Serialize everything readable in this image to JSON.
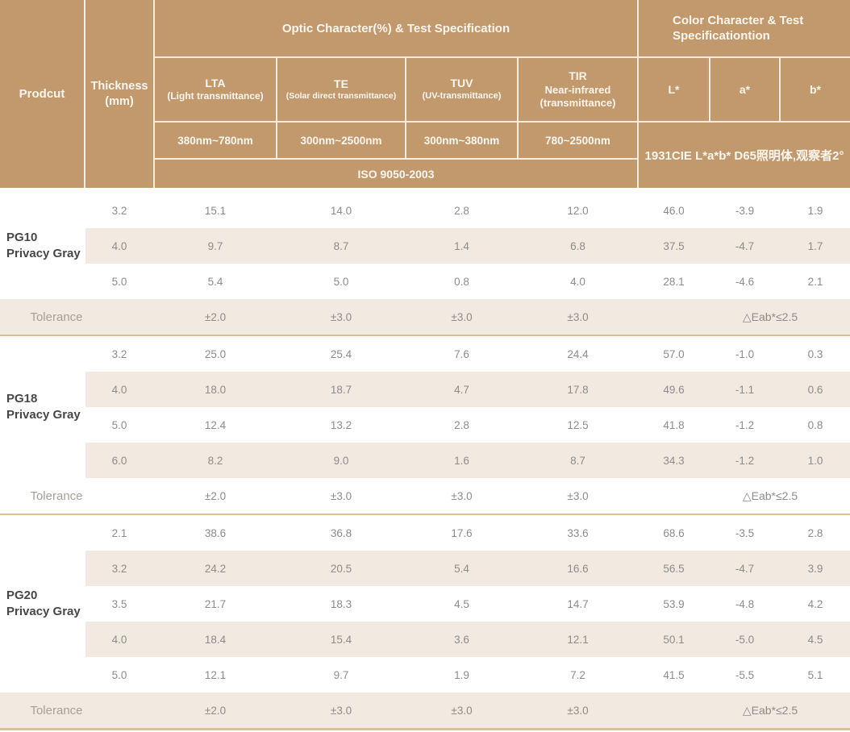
{
  "colors": {
    "header_bg": "#C2996C",
    "header_text": "#FBF6EF",
    "stripe_bg": "#F2E9E1",
    "separator": "#D9BF9D",
    "value_text": "#8C8C8C",
    "product_text": "#474747"
  },
  "header": {
    "product_col": "Prodcut",
    "thickness_col": "Thickness\n(mm)",
    "optic_group": "Optic Character(%) & Test Specification",
    "color_group": "Color Character & Test Specificationtion",
    "optic_columns": [
      {
        "title": "LTA",
        "subtitle": "(Light transmittance)",
        "range": "380nm~780nm"
      },
      {
        "title": "TE",
        "subtitle": "(Solar direct transmittance)",
        "range": "300nm~2500nm"
      },
      {
        "title": "TUV",
        "subtitle": "(UV-transmittance)",
        "range": "300nm~380nm"
      },
      {
        "title": "TIR",
        "subtitle": "Near-infrared\n(transmittance)",
        "range": "780~2500nm"
      }
    ],
    "iso_standard": "ISO 9050-2003",
    "color_columns": [
      "L*",
      "a*",
      "b*"
    ],
    "cie_standard": "1931CIE L*a*b*  D65照明体,观察者2°"
  },
  "groups": [
    {
      "product": "PG10\nPrivacy Gray",
      "rows": [
        {
          "thickness": "3.2",
          "values": [
            "15.1",
            "14.0",
            "2.8",
            "12.0",
            "46.0",
            "-3.9",
            "1.9"
          ]
        },
        {
          "thickness": "4.0",
          "values": [
            "9.7",
            "8.7",
            "1.4",
            "6.8",
            "37.5",
            "-4.7",
            "1.7"
          ]
        },
        {
          "thickness": "5.0",
          "values": [
            "5.4",
            "5.0",
            "0.8",
            "4.0",
            "28.1",
            "-4.6",
            "2.1"
          ]
        }
      ],
      "tolerance": {
        "label": "Tolerance",
        "values": [
          "±2.0",
          "±3.0",
          "±3.0",
          "±3.0"
        ],
        "color_tolerance": "△Eab*≤2.5"
      }
    },
    {
      "product": "PG18\nPrivacy Gray",
      "rows": [
        {
          "thickness": "3.2",
          "values": [
            "25.0",
            "25.4",
            "7.6",
            "24.4",
            "57.0",
            "-1.0",
            "0.3"
          ]
        },
        {
          "thickness": "4.0",
          "values": [
            "18.0",
            "18.7",
            "4.7",
            "17.8",
            "49.6",
            "-1.1",
            "0.6"
          ]
        },
        {
          "thickness": "5.0",
          "values": [
            "12.4",
            "13.2",
            "2.8",
            "12.5",
            "41.8",
            "-1.2",
            "0.8"
          ]
        },
        {
          "thickness": "6.0",
          "values": [
            "8.2",
            "9.0",
            "1.6",
            "8.7",
            "34.3",
            "-1.2",
            "1.0"
          ]
        }
      ],
      "tolerance": {
        "label": "Tolerance",
        "values": [
          "±2.0",
          "±3.0",
          "±3.0",
          "±3.0"
        ],
        "color_tolerance": "△Eab*≤2.5"
      }
    },
    {
      "product": "PG20\nPrivacy Gray",
      "rows": [
        {
          "thickness": "2.1",
          "values": [
            "38.6",
            "36.8",
            "17.6",
            "33.6",
            "68.6",
            "-3.5",
            "2.8"
          ]
        },
        {
          "thickness": "3.2",
          "values": [
            "24.2",
            "20.5",
            "5.4",
            "16.6",
            "56.5",
            "-4.7",
            "3.9"
          ]
        },
        {
          "thickness": "3.5",
          "values": [
            "21.7",
            "18.3",
            "4.5",
            "14.7",
            "53.9",
            "-4.8",
            "4.2"
          ]
        },
        {
          "thickness": "4.0",
          "values": [
            "18.4",
            "15.4",
            "3.6",
            "12.1",
            "50.1",
            "-5.0",
            "4.5"
          ]
        },
        {
          "thickness": "5.0",
          "values": [
            "12.1",
            "9.7",
            "1.9",
            "7.2",
            "41.5",
            "-5.5",
            "5.1"
          ]
        }
      ],
      "tolerance": {
        "label": "Tolerance",
        "values": [
          "±2.0",
          "±3.0",
          "±3.0",
          "±3.0"
        ],
        "color_tolerance": "△Eab*≤2.5"
      }
    }
  ]
}
